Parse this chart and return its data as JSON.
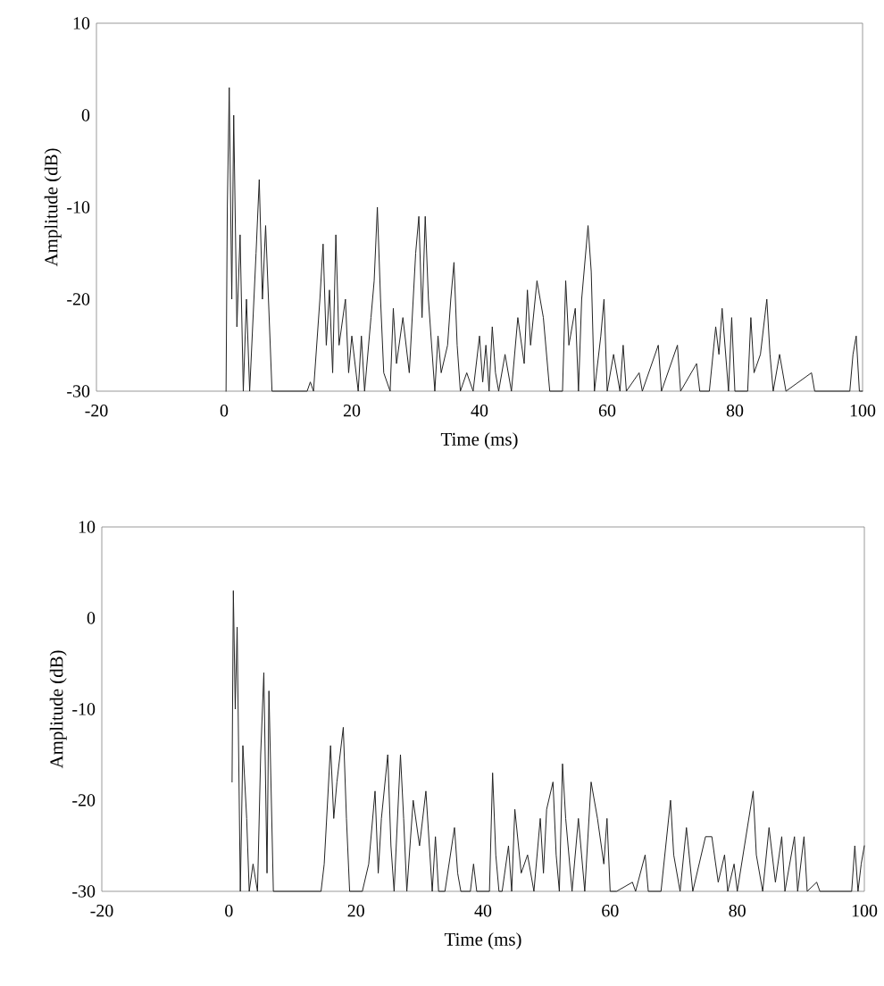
{
  "chart_data": [
    {
      "type": "line",
      "xlabel": "Time (ms)",
      "ylabel": "Amplitude (dB)",
      "color": "#222222",
      "xlim": [
        -20,
        100
      ],
      "ylim": [
        -30,
        10
      ],
      "xticks": [
        -20,
        0,
        20,
        40,
        60,
        80,
        100
      ],
      "yticks": [
        -30,
        -20,
        -10,
        0,
        10
      ],
      "x": [
        0.3,
        0.5,
        0.8,
        1.2,
        1.5,
        2,
        2.5,
        3,
        3.5,
        4,
        5,
        5.5,
        6,
        6.5,
        7.5,
        13,
        13.5,
        14,
        15,
        15.5,
        16,
        16.5,
        17,
        17.5,
        18,
        19,
        19.5,
        20,
        21,
        21.5,
        22,
        23,
        23.5,
        24,
        24.5,
        25,
        26,
        26.5,
        27,
        28,
        29,
        30,
        30.5,
        31,
        31.5,
        32,
        33,
        33.5,
        34,
        35,
        35.5,
        36,
        36.5,
        37,
        38,
        39,
        40,
        40.5,
        41,
        41.5,
        42,
        42.5,
        43,
        44,
        45,
        46,
        47,
        47.5,
        48,
        49,
        50,
        51,
        53,
        53.5,
        54,
        55,
        55.5,
        56,
        57,
        57.5,
        58,
        59,
        59.5,
        60,
        61,
        62,
        62.5,
        63,
        65,
        65.5,
        68,
        68.5,
        71,
        71.5,
        74,
        74.5,
        76,
        77,
        77.5,
        78,
        79,
        79.5,
        80,
        82,
        82.5,
        83,
        84,
        85,
        85.5,
        86,
        87,
        88,
        92,
        92.5,
        98,
        98.5,
        99,
        99.5,
        100
      ],
      "values": [
        -30,
        -10,
        3,
        -20,
        0,
        -23,
        -13,
        -30,
        -20,
        -30,
        -15,
        -7,
        -20,
        -12,
        -30,
        -30,
        -29,
        -30,
        -20,
        -14,
        -25,
        -19,
        -28,
        -13,
        -25,
        -20,
        -28,
        -24,
        -30,
        -24,
        -30,
        -22,
        -18,
        -10,
        -20,
        -28,
        -30,
        -21,
        -27,
        -22,
        -28,
        -15,
        -11,
        -22,
        -11,
        -20,
        -30,
        -24,
        -28,
        -25,
        -20,
        -16,
        -25,
        -30,
        -28,
        -30,
        -24,
        -29,
        -25,
        -30,
        -23,
        -28,
        -30,
        -26,
        -30,
        -22,
        -27,
        -19,
        -25,
        -18,
        -22,
        -30,
        -30,
        -18,
        -25,
        -21,
        -30,
        -20,
        -12,
        -17,
        -30,
        -24,
        -20,
        -30,
        -26,
        -30,
        -25,
        -30,
        -28,
        -30,
        -25,
        -30,
        -25,
        -30,
        -27,
        -30,
        -30,
        -23,
        -26,
        -21,
        -30,
        -22,
        -30,
        -30,
        -22,
        -28,
        -26,
        -20,
        -26,
        -30,
        -26,
        -30,
        -28,
        -30,
        -30,
        -26,
        -24,
        -30,
        -30
      ]
    },
    {
      "type": "line",
      "xlabel": "Time (ms)",
      "ylabel": "Amplitude (dB)",
      "color": "#222222",
      "xlim": [
        -20,
        100
      ],
      "ylim": [
        -30,
        10
      ],
      "xticks": [
        -20,
        0,
        20,
        40,
        60,
        80,
        100
      ],
      "yticks": [
        -30,
        -20,
        -10,
        0,
        10
      ],
      "x": [
        0.5,
        0.7,
        1,
        1.3,
        1.8,
        2.2,
        2.8,
        3.2,
        3.8,
        4.5,
        5,
        5.5,
        6,
        6.3,
        7,
        14.5,
        15,
        16,
        16.5,
        17,
        18,
        18.5,
        19,
        20,
        21,
        22,
        23,
        23.5,
        24,
        25,
        25.5,
        26,
        27,
        27.5,
        28,
        29,
        30,
        31,
        32,
        32.5,
        33,
        34,
        35.5,
        36,
        36.5,
        38,
        38.5,
        39,
        41,
        41.5,
        42,
        42.5,
        43,
        44,
        44.5,
        45,
        46,
        47,
        48,
        49,
        49.5,
        50,
        51,
        51.5,
        52,
        52.5,
        53,
        54,
        55,
        56,
        57,
        58,
        59,
        59.5,
        60,
        61,
        63.5,
        64,
        65.5,
        66,
        68,
        69.5,
        70,
        71,
        72,
        73,
        75,
        76,
        77,
        78,
        78.5,
        79.5,
        80,
        82.5,
        83,
        84,
        85,
        86,
        87,
        87.5,
        89,
        89.5,
        90.5,
        91,
        92.5,
        93,
        98,
        98.5,
        99,
        99.5,
        100
      ],
      "values": [
        -18,
        3,
        -10,
        -1,
        -30,
        -14,
        -22,
        -30,
        -27,
        -30,
        -15,
        -6,
        -28,
        -8,
        -30,
        -30,
        -27,
        -14,
        -22,
        -18,
        -12,
        -22,
        -30,
        -30,
        -30,
        -27,
        -19,
        -28,
        -22,
        -15,
        -25,
        -30,
        -15,
        -22,
        -30,
        -20,
        -25,
        -19,
        -30,
        -24,
        -30,
        -30,
        -23,
        -28,
        -30,
        -30,
        -27,
        -30,
        -30,
        -17,
        -26,
        -30,
        -30,
        -25,
        -30,
        -21,
        -28,
        -26,
        -30,
        -22,
        -28,
        -21,
        -18,
        -26,
        -30,
        -16,
        -22,
        -30,
        -22,
        -30,
        -18,
        -22,
        -27,
        -22,
        -30,
        -30,
        -29,
        -30,
        -26,
        -30,
        -30,
        -20,
        -26,
        -30,
        -23,
        -30,
        -24,
        -24,
        -29,
        -26,
        -30,
        -27,
        -30,
        -19,
        -26,
        -30,
        -23,
        -29,
        -24,
        -30,
        -24,
        -30,
        -24,
        -30,
        -29,
        -30,
        -30,
        -25,
        -30,
        -27,
        -25
      ]
    }
  ]
}
